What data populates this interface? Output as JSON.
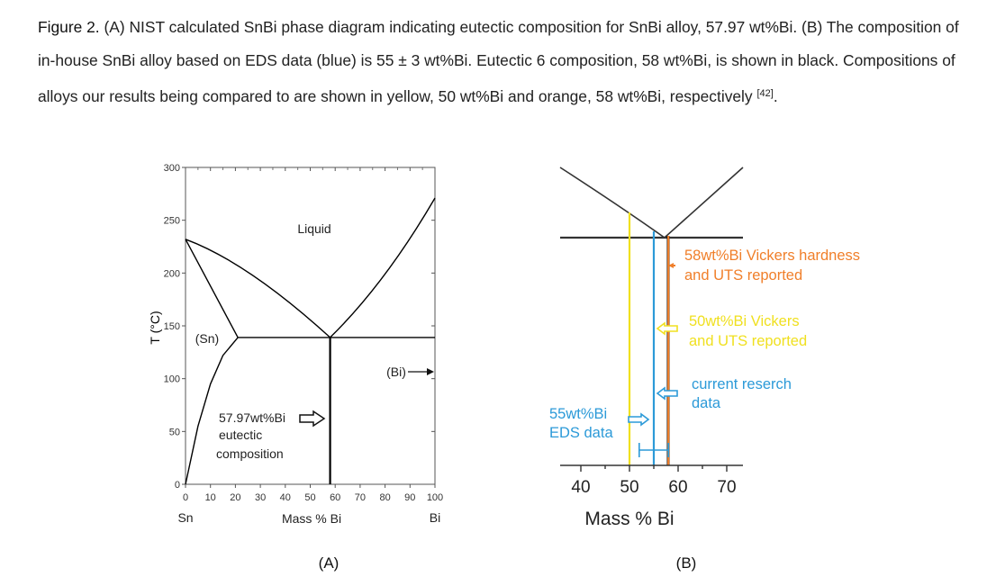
{
  "caption": {
    "figure_label": "Figure 2.",
    "text": " (A) NIST calculated SnBi phase diagram indicating eutectic composition for SnBi alloy, 57.97 wt%Bi. (B) The composition of in-house SnBi alloy based on EDS data (blue) is 55 ± 3 wt%Bi. Eutectic 6 composition, 58 wt%Bi, is shown in black. Compositions of alloys our results being compared to are shown in yellow, 50 wt%Bi and orange, 58 wt%Bi, respectively ",
    "ref": "[42]",
    "end": "."
  },
  "panel_a": {
    "sublabel": "(A)",
    "y_axis_label": "T (°C)",
    "x_axis_label": "Mass % Bi",
    "y_ticks": [
      "0",
      "50",
      "100",
      "150",
      "200",
      "250",
      "300"
    ],
    "x_ticks": [
      "0",
      "10",
      "20",
      "30",
      "40",
      "50",
      "60",
      "70",
      "80",
      "90",
      "100"
    ],
    "left_end_label": "Sn",
    "right_end_label": "Bi",
    "region_liquid": "Liquid",
    "region_sn": "(Sn)",
    "region_bi": "(Bi)",
    "annotation_line1": "57.97wt%Bi",
    "annotation_line2": "eutectic",
    "annotation_line3": "composition"
  },
  "panel_b": {
    "sublabel": "(B)",
    "x_axis_label": "Mass % Bi",
    "x_ticks": [
      "40",
      "50",
      "60",
      "70"
    ],
    "orange_line1": "58wt%Bi Vickers hardness",
    "orange_line2": "and UTS reported",
    "yellow_line1": "50wt%Bi Vickers",
    "yellow_line2": "and UTS reported",
    "cyan_line1": "current reserch",
    "cyan_line2": "data",
    "blue_line1": "55wt%Bi",
    "blue_line2": "EDS data",
    "colors": {
      "orange": "#f07f2a",
      "yellow": "#f0e020",
      "blue": "#2c9ad8",
      "black": "#000000"
    }
  },
  "chart_data": [
    {
      "type": "line",
      "xlabel": "Mass % Bi",
      "ylabel": "T (°C)",
      "xlim": [
        0,
        100
      ],
      "ylim": [
        0,
        300
      ],
      "series": [
        {
          "x": [
            0,
            57.97
          ],
          "y": [
            232,
            139
          ]
        },
        {
          "x": [
            57.97,
            100
          ],
          "y": [
            139,
            271
          ]
        },
        {
          "x": [
            0,
            21
          ],
          "y": [
            232,
            139
          ]
        },
        {
          "x": [
            0,
            5,
            10,
            15,
            21
          ],
          "y": [
            0,
            55,
            95,
            122,
            139
          ]
        },
        {
          "x": [
            21,
            100
          ],
          "y": [
            139,
            139
          ]
        },
        {
          "x": [
            57.97,
            57.97
          ],
          "y": [
            0,
            139
          ]
        }
      ]
    },
    {
      "type": "line",
      "xlabel": "Mass % Bi",
      "x_ticks": [
        40,
        50,
        60,
        70
      ],
      "series": [
        {
          "x": [
            50,
            50
          ],
          "color": "yellow"
        },
        {
          "x": [
            55,
            55
          ],
          "color": "blue"
        },
        {
          "x": [
            57.97,
            57.97
          ],
          "color": "black"
        },
        {
          "x": [
            58,
            58
          ],
          "color": "orange"
        }
      ],
      "error_bar": {
        "center": 55,
        "minus": 3,
        "plus": 3
      }
    }
  ]
}
